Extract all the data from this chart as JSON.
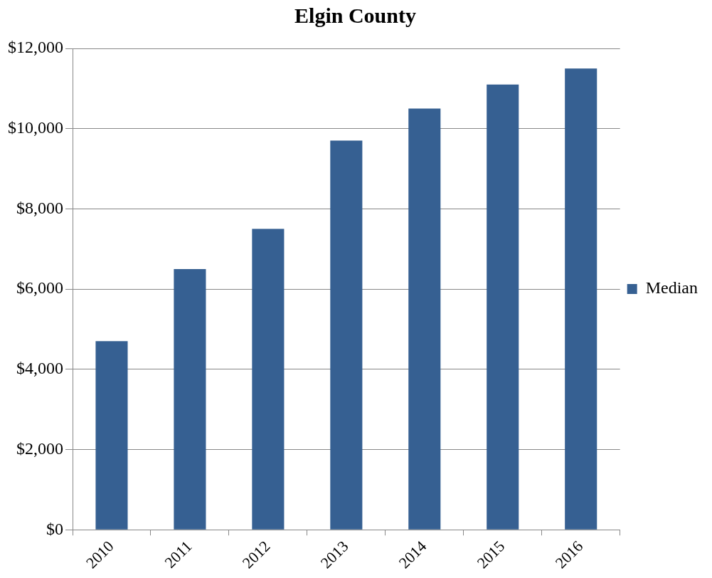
{
  "chart_data": {
    "type": "bar",
    "title": "Elgin County",
    "categories": [
      "2010",
      "2011",
      "2012",
      "2013",
      "2014",
      "2015",
      "2016"
    ],
    "series": [
      {
        "name": "Median",
        "color": "#366092",
        "values": [
          4700,
          6500,
          7500,
          9700,
          10500,
          11100,
          11500
        ]
      }
    ],
    "ylim": [
      0,
      12000
    ],
    "yticks": [
      {
        "value": 0,
        "label": "$0"
      },
      {
        "value": 2000,
        "label": "$2,000"
      },
      {
        "value": 4000,
        "label": "$4,000"
      },
      {
        "value": 6000,
        "label": "$6,000"
      },
      {
        "value": 8000,
        "label": "$8,000"
      },
      {
        "value": 10000,
        "label": "$10,000"
      },
      {
        "value": 12000,
        "label": "$12,000"
      }
    ],
    "grid": "y",
    "legend": "right"
  }
}
